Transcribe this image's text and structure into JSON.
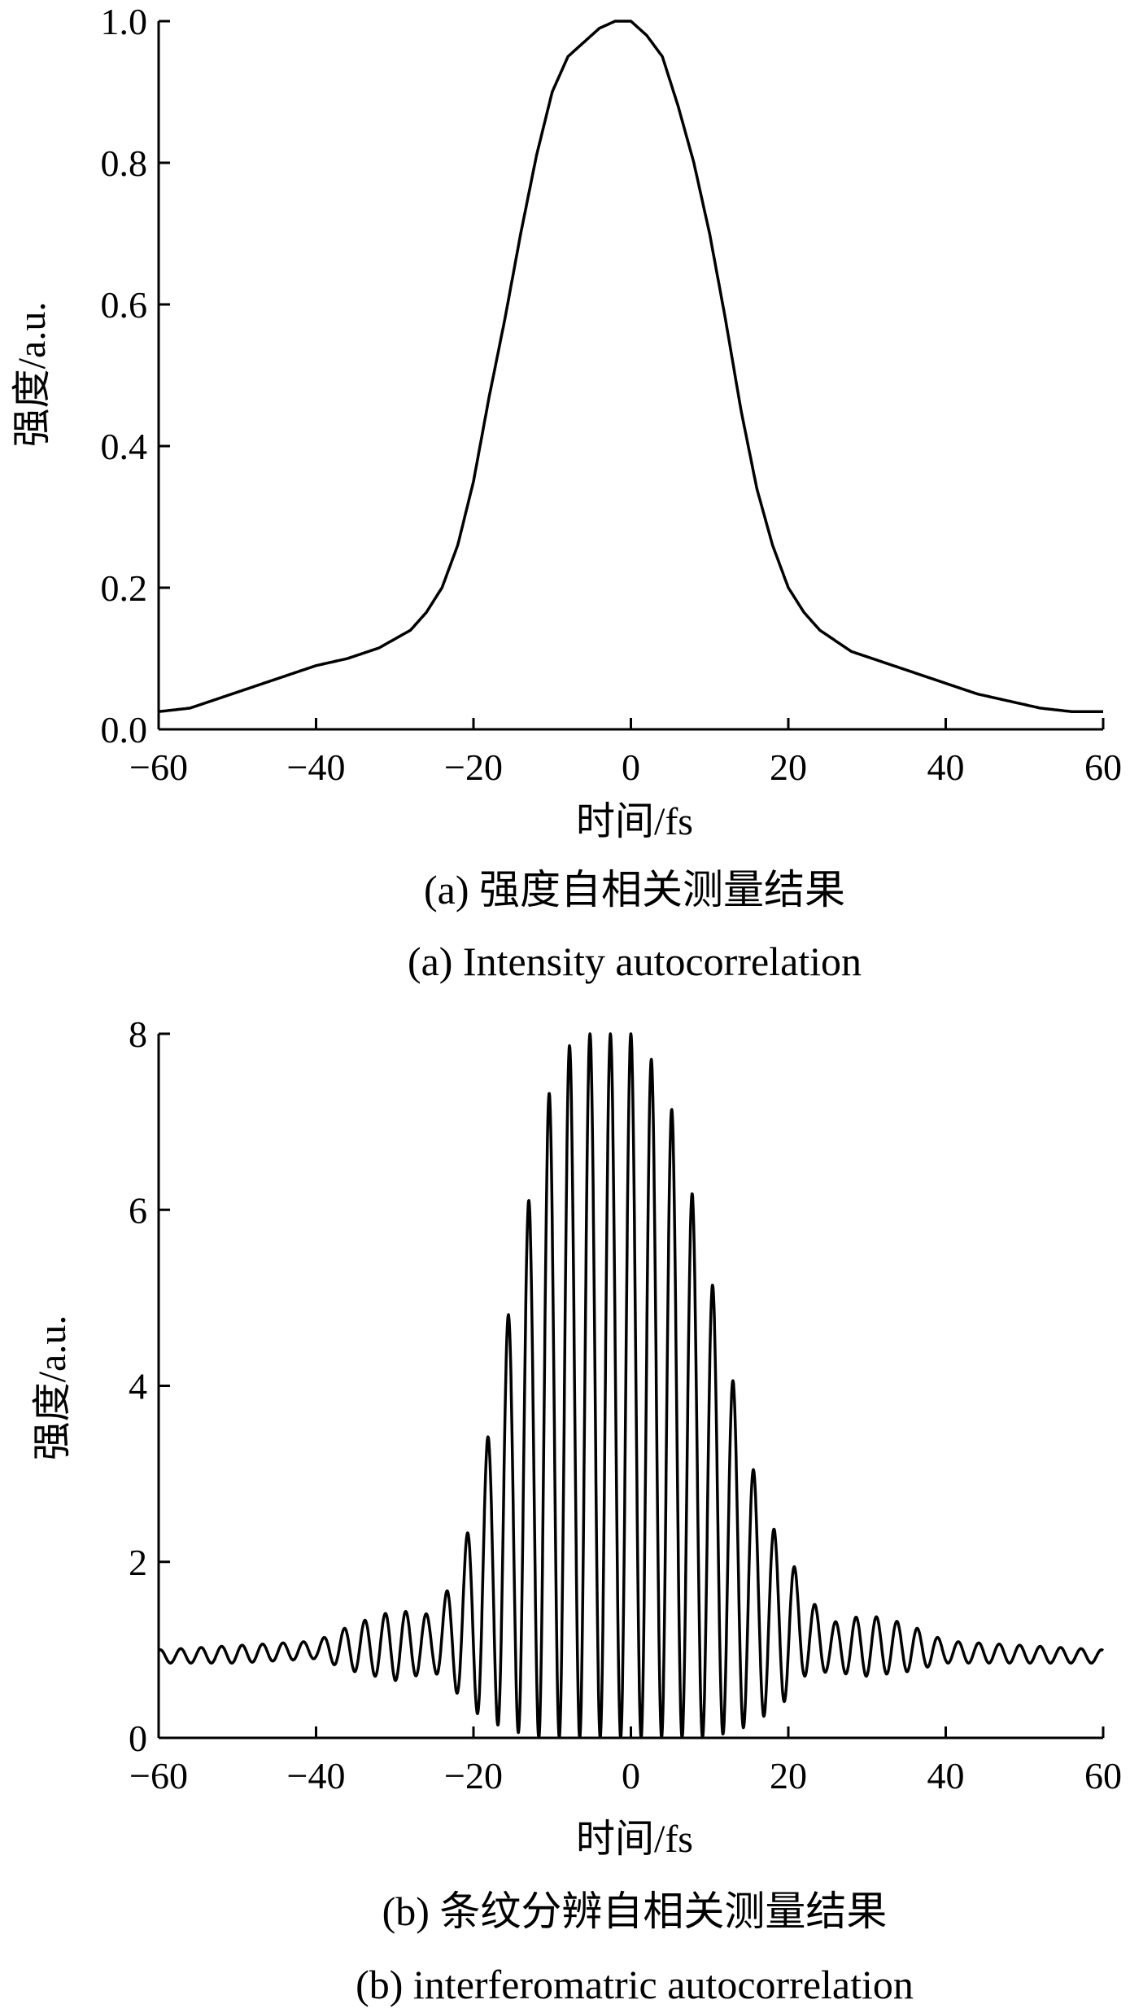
{
  "chart_data": [
    {
      "type": "line",
      "title": "",
      "xlabel": "时间/fs",
      "ylabel": "强度/a.u.",
      "caption_cn": "(a) 强度自相关测量结果",
      "caption_en": "(a) Intensity autocorrelation",
      "xlim": [
        -60,
        60
      ],
      "ylim": [
        0,
        1.0
      ],
      "xticks": [
        -60,
        -40,
        -20,
        0,
        20,
        40,
        60
      ],
      "xtick_labels": [
        "−60",
        "−40",
        "−20",
        "0",
        "20",
        "40",
        "60"
      ],
      "yticks": [
        0,
        0.2,
        0.4,
        0.6,
        0.8,
        1.0
      ],
      "ytick_labels": [
        "0.0",
        "0.2",
        "0.4",
        "0.6",
        "0.8",
        "1.0"
      ],
      "series": [
        {
          "x": [
            -60,
            -56,
            -52,
            -48,
            -44,
            -40,
            -36,
            -32,
            -28,
            -26,
            -24,
            -22,
            -20,
            -18,
            -16,
            -14,
            -12,
            -10,
            -8,
            -6,
            -4,
            -2,
            0,
            2,
            4,
            6,
            8,
            10,
            12,
            14,
            16,
            18,
            20,
            22,
            24,
            26,
            28,
            32,
            36,
            40,
            44,
            48,
            52,
            56,
            60
          ],
          "y": [
            0.025,
            0.03,
            0.045,
            0.06,
            0.075,
            0.09,
            0.1,
            0.115,
            0.14,
            0.165,
            0.2,
            0.26,
            0.35,
            0.47,
            0.58,
            0.7,
            0.81,
            0.9,
            0.95,
            0.97,
            0.99,
            1.0,
            1.0,
            0.98,
            0.95,
            0.88,
            0.8,
            0.7,
            0.58,
            0.45,
            0.34,
            0.26,
            0.2,
            0.165,
            0.14,
            0.125,
            0.11,
            0.095,
            0.08,
            0.065,
            0.05,
            0.04,
            0.03,
            0.025,
            0.025
          ]
        }
      ]
    },
    {
      "type": "line",
      "title": "",
      "xlabel": "时间/fs",
      "ylabel": "强度/a.u.",
      "caption_cn": "(b) 条纹分辨自相关测量结果",
      "caption_en": "(b) interferomatric autocorrelation",
      "xlim": [
        -60,
        60
      ],
      "ylim": [
        0,
        8
      ],
      "xticks": [
        -60,
        -40,
        -20,
        0,
        20,
        40,
        60
      ],
      "xtick_labels": [
        "−60",
        "−40",
        "−20",
        "0",
        "20",
        "40",
        "60"
      ],
      "yticks": [
        0,
        2,
        4,
        6,
        8
      ],
      "ytick_labels": [
        "0",
        "2",
        "4",
        "6",
        "8"
      ],
      "fringe_period_fs": 2.6,
      "series": [
        {
          "envelope_x": [
            -60,
            -50,
            -40,
            -35,
            -30,
            -25,
            -22,
            -20,
            -18,
            -16,
            -14,
            -12,
            -10,
            -8,
            -6,
            -4,
            -2,
            0,
            2,
            4,
            6,
            8,
            10,
            12,
            14,
            16,
            18,
            20,
            22,
            25,
            30,
            35,
            40,
            50,
            60
          ],
          "envelope_peak": [
            1.0,
            1.05,
            1.1,
            1.3,
            1.45,
            1.4,
            1.9,
            2.6,
            3.5,
            4.6,
            5.6,
            6.6,
            7.5,
            7.85,
            8.0,
            8.0,
            8.0,
            8.0,
            7.8,
            7.5,
            6.9,
            6.1,
            5.3,
            4.5,
            3.6,
            2.9,
            2.4,
            2.1,
            1.7,
            1.3,
            1.4,
            1.3,
            1.1,
            1.05,
            1.0
          ],
          "envelope_trough": [
            0.85,
            0.85,
            0.9,
            0.75,
            0.65,
            0.75,
            0.5,
            0.3,
            0.2,
            0.1,
            0.05,
            0.0,
            0.0,
            0.0,
            0.0,
            0.0,
            0.0,
            0.0,
            0.0,
            0.0,
            0.0,
            0.0,
            0.0,
            0.05,
            0.1,
            0.2,
            0.3,
            0.45,
            0.7,
            0.75,
            0.7,
            0.75,
            0.85,
            0.85,
            0.85
          ]
        }
      ]
    }
  ]
}
